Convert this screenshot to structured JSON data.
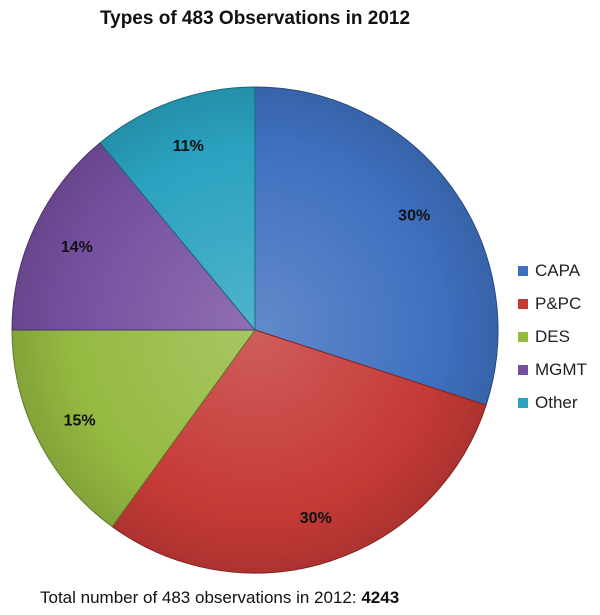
{
  "chart_data": {
    "type": "pie",
    "title": "Types of 483 Observations in 2012",
    "categories": [
      "CAPA",
      "P&PC",
      "DES",
      "MGMT",
      "Other"
    ],
    "values": [
      30,
      30,
      15,
      14,
      11
    ],
    "value_labels": [
      "30%",
      "30%",
      "15%",
      "14%",
      "11%"
    ],
    "colors": [
      "#3F70C0",
      "#C53A37",
      "#95BA41",
      "#7650A0",
      "#2AA2C0"
    ],
    "legend_position": "right",
    "start": "top, clockwise"
  },
  "footer": {
    "text": "Total number of 483 observations  in 2012: ",
    "total": "4243"
  }
}
